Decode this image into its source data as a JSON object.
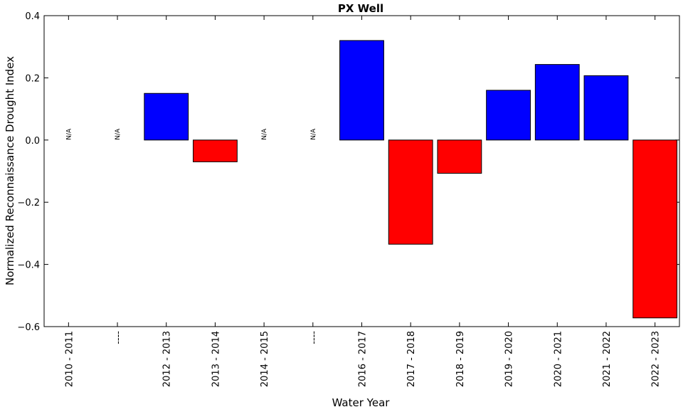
{
  "chart_data": {
    "type": "bar",
    "title": "PX Well",
    "xlabel": "Water Year",
    "ylabel": "Normalized Reconnaissance Drought Index",
    "ylim": [
      -0.6,
      0.4
    ],
    "yticks": [
      "0.4",
      "0.2",
      "0.0",
      "−0.2",
      "−0.4",
      "−0.6"
    ],
    "ytick_values": [
      0.4,
      0.2,
      0.0,
      -0.2,
      -0.4,
      -0.6
    ],
    "categories": [
      "2010 - 2011",
      "----",
      "2012 - 2013",
      "2013 - 2014",
      "2014 - 2015",
      "----",
      "2016 - 2017",
      "2017 - 2018",
      "2018 - 2019",
      "2019 - 2020",
      "2020 - 2021",
      "2021 - 2022",
      "2022 - 2023"
    ],
    "values": [
      null,
      null,
      0.15,
      -0.07,
      null,
      null,
      0.32,
      -0.335,
      -0.107,
      0.16,
      0.243,
      0.207,
      -0.572
    ],
    "missing_label": "N/A",
    "positive_color": "#0000ff",
    "negative_color": "#ff0000",
    "grid": false,
    "legend": "none"
  }
}
